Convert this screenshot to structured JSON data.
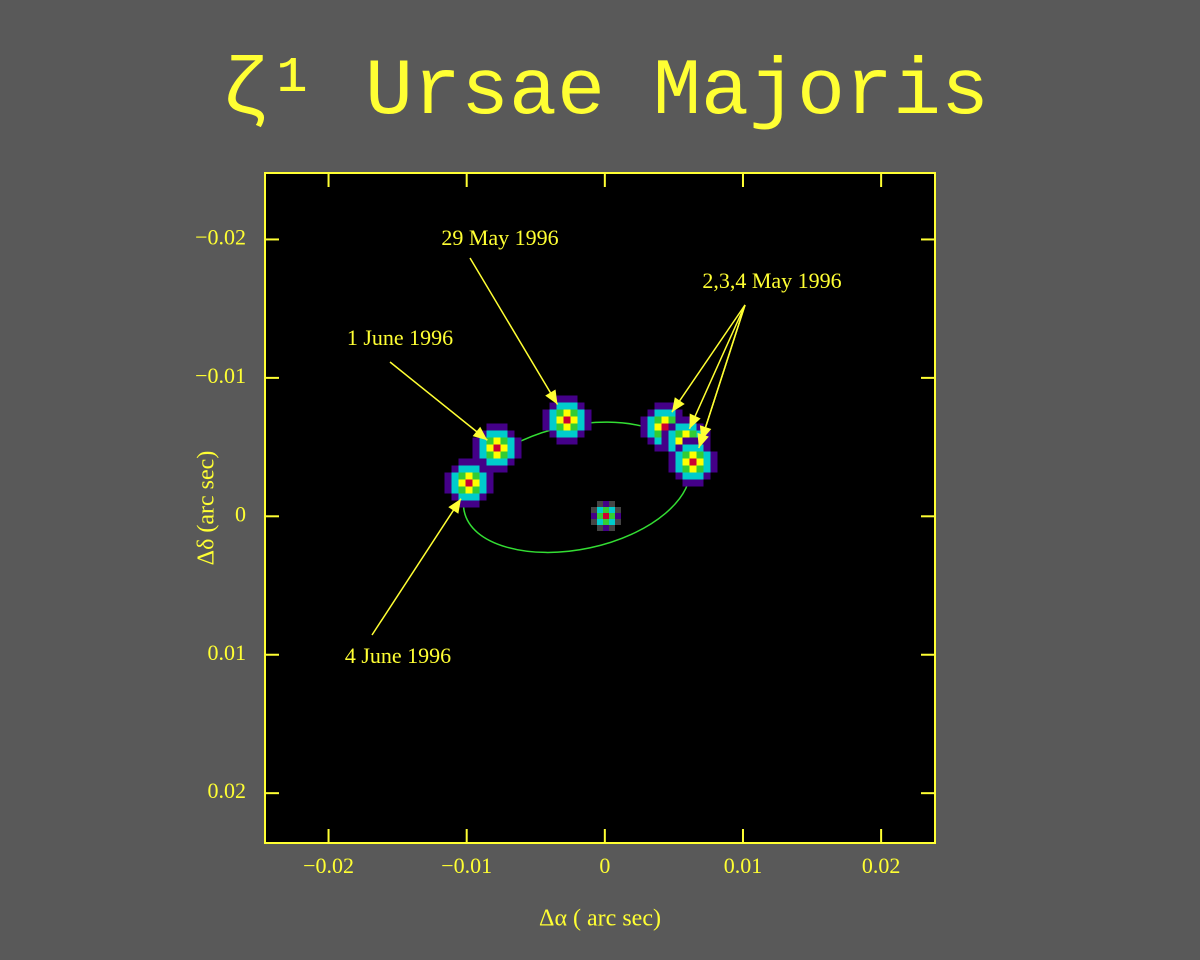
{
  "chart_data": {
    "type": "scatter",
    "title": "ζ¹ Ursae Majoris",
    "x_label": "Δα ( arc sec)",
    "y_label": "Δδ (arc sec)",
    "xlim": [
      -0.0246,
      0.0239
    ],
    "ylim": [
      -0.0248,
      0.0236
    ],
    "xticks": [
      {
        "value": -0.02,
        "label": "−0.02"
      },
      {
        "value": -0.01,
        "label": "−0.01"
      },
      0,
      0.01,
      0.02
    ],
    "yticks": [
      {
        "value": -0.02,
        "label": "−0.02"
      },
      {
        "value": -0.01,
        "label": "−0.01"
      },
      0,
      0.01,
      0.02
    ],
    "series": [
      {
        "x": [
          0
        ],
        "y": [
          0
        ]
      },
      {
        "x": [
          -0.00978,
          -0.0076,
          -0.00283,
          0.0042,
          0.00565,
          0.00645
        ],
        "y": [
          -0.00224,
          -0.00477,
          -0.00708,
          -0.00657,
          -0.00527,
          -0.00383
        ]
      }
    ],
    "orbit": {
      "color": "#33dd33",
      "x": [
        0.00612,
        0.00586,
        0.00439,
        0.00195,
        -0.00109,
        -0.00428,
        -0.00713,
        -0.00921,
        -0.01018,
        -0.00992,
        -0.00845,
        -0.00601,
        -0.00296,
        0.00022,
        0.00307,
        0.00515
      ],
      "y": [
        -0.00382,
        -0.00201,
        -0.00022,
        0.00129,
        0.00228,
        0.00261,
        0.00222,
        0.00118,
        -0.00037,
        -0.00217,
        -0.00397,
        -0.00547,
        -0.00647,
        -0.0068,
        -0.00641,
        -0.00536
      ]
    },
    "annotations": [
      "29 May 1996",
      "2,3,4 May 1996",
      "1 June 1996",
      "4 June 1996"
    ],
    "color": "#ffff33"
  }
}
